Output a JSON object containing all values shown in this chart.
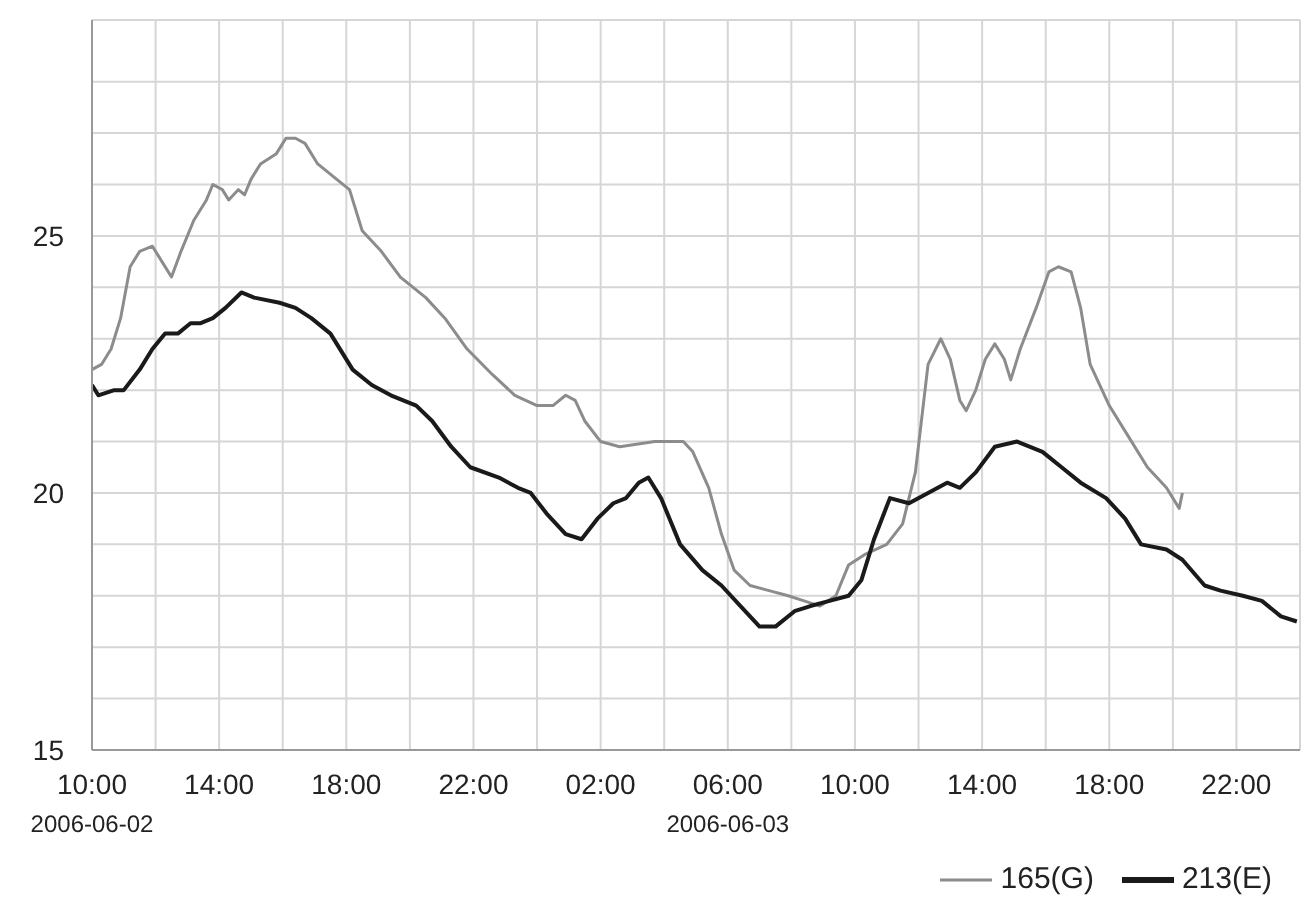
{
  "chart_data": {
    "type": "line",
    "xlim": [
      "2006-06-02T10:00",
      "2006-06-04T00:00"
    ],
    "ylim": [
      15,
      29.2
    ],
    "xticks": [
      {
        "value": "2006-06-02T10:00",
        "label": "10:00\n2006-06-02"
      },
      {
        "value": "2006-06-02T12:00",
        "label": null
      },
      {
        "value": "2006-06-02T14:00",
        "label": "14:00"
      },
      {
        "value": "2006-06-02T16:00",
        "label": null
      },
      {
        "value": "2006-06-02T18:00",
        "label": "18:00"
      },
      {
        "value": "2006-06-02T20:00",
        "label": null
      },
      {
        "value": "2006-06-02T22:00",
        "label": "22:00"
      },
      {
        "value": "2006-06-03T00:00",
        "label": null
      },
      {
        "value": "2006-06-03T02:00",
        "label": "02:00"
      },
      {
        "value": "2006-06-03T04:00",
        "label": null
      },
      {
        "value": "2006-06-03T06:00",
        "label": "06:00\n2006-06-03"
      },
      {
        "value": "2006-06-03T08:00",
        "label": null
      },
      {
        "value": "2006-06-03T10:00",
        "label": "10:00"
      },
      {
        "value": "2006-06-03T12:00",
        "label": null
      },
      {
        "value": "2006-06-03T14:00",
        "label": "14:00"
      },
      {
        "value": "2006-06-03T16:00",
        "label": null
      },
      {
        "value": "2006-06-03T18:00",
        "label": "18:00"
      },
      {
        "value": "2006-06-03T20:00",
        "label": null
      },
      {
        "value": "2006-06-03T22:00",
        "label": "22:00"
      }
    ],
    "yticks": [
      15,
      {
        "value": 16,
        "label": null
      },
      {
        "value": 17,
        "label": null
      },
      {
        "value": 18,
        "label": null
      },
      {
        "value": 19,
        "label": null
      },
      20,
      {
        "value": 21,
        "label": null
      },
      {
        "value": 22,
        "label": null
      },
      {
        "value": 23,
        "label": null
      },
      {
        "value": 24,
        "label": null
      },
      25,
      {
        "value": 26,
        "label": null
      },
      {
        "value": 27,
        "label": null
      },
      {
        "value": 28,
        "label": null
      }
    ],
    "grid": true,
    "legend": "bottom right",
    "marker": "none",
    "line_style": "solid",
    "series": [
      {
        "name": "165(G)",
        "color": "#8c8c8c",
        "x": [
          "2006-06-02T10:00",
          "2006-06-02T10:18",
          "2006-06-02T10:36",
          "2006-06-02T10:54",
          "2006-06-02T11:12",
          "2006-06-02T11:30",
          "2006-06-02T11:54",
          "2006-06-02T12:12",
          "2006-06-02T12:30",
          "2006-06-02T12:48",
          "2006-06-02T13:12",
          "2006-06-02T13:36",
          "2006-06-02T13:48",
          "2006-06-02T14:06",
          "2006-06-02T14:18",
          "2006-06-02T14:36",
          "2006-06-02T14:48",
          "2006-06-02T15:00",
          "2006-06-02T15:18",
          "2006-06-02T15:48",
          "2006-06-02T16:06",
          "2006-06-02T16:24",
          "2006-06-02T16:42",
          "2006-06-02T17:06",
          "2006-06-02T17:42",
          "2006-06-02T18:06",
          "2006-06-02T18:30",
          "2006-06-02T19:06",
          "2006-06-02T19:42",
          "2006-06-02T20:30",
          "2006-06-02T21:06",
          "2006-06-02T21:48",
          "2006-06-02T22:36",
          "2006-06-02T23:18",
          "2006-06-03T00:00",
          "2006-06-03T00:30",
          "2006-06-03T00:54",
          "2006-06-03T01:12",
          "2006-06-03T01:30",
          "2006-06-03T02:00",
          "2006-06-03T02:36",
          "2006-06-03T03:42",
          "2006-06-03T04:36",
          "2006-06-03T04:54",
          "2006-06-03T05:24",
          "2006-06-03T05:48",
          "2006-06-03T06:12",
          "2006-06-03T06:42",
          "2006-06-03T07:18",
          "2006-06-03T07:54",
          "2006-06-03T08:24",
          "2006-06-03T08:54",
          "2006-06-03T09:24",
          "2006-06-03T09:48",
          "2006-06-03T10:18",
          "2006-06-03T11:00",
          "2006-06-03T11:30",
          "2006-06-03T11:54",
          "2006-06-03T12:18",
          "2006-06-03T12:42",
          "2006-06-03T13:00",
          "2006-06-03T13:18",
          "2006-06-03T13:30",
          "2006-06-03T13:48",
          "2006-06-03T14:06",
          "2006-06-03T14:24",
          "2006-06-03T14:42",
          "2006-06-03T14:54",
          "2006-06-03T15:12",
          "2006-06-03T15:42",
          "2006-06-03T16:06",
          "2006-06-03T16:24",
          "2006-06-03T16:48",
          "2006-06-03T17:06",
          "2006-06-03T17:24",
          "2006-06-03T18:00",
          "2006-06-03T18:36",
          "2006-06-03T19:12",
          "2006-06-03T19:48",
          "2006-06-03T20:12",
          "2006-06-03T20:18"
        ],
        "values": [
          22.4,
          22.5,
          22.8,
          23.4,
          24.4,
          24.7,
          24.8,
          24.5,
          24.2,
          24.7,
          25.3,
          25.7,
          26,
          25.9,
          25.7,
          25.9,
          25.8,
          26.1,
          26.4,
          26.6,
          26.9,
          26.9,
          26.8,
          26.4,
          26.1,
          25.9,
          25.1,
          24.7,
          24.2,
          23.8,
          23.4,
          22.8,
          22.3,
          21.9,
          21.7,
          21.7,
          21.9,
          21.8,
          21.4,
          21,
          20.9,
          21,
          21,
          20.8,
          20.1,
          19.2,
          18.5,
          18.2,
          18.1,
          18,
          17.9,
          17.8,
          18,
          18.6,
          18.8,
          19,
          19.4,
          20.4,
          22.5,
          23,
          22.6,
          21.8,
          21.6,
          22,
          22.6,
          22.9,
          22.6,
          22.2,
          22.8,
          23.6,
          24.3,
          24.4,
          24.3,
          23.6,
          22.5,
          21.7,
          21.1,
          20.5,
          20.1,
          19.7,
          20
        ]
      },
      {
        "name": "213(E)",
        "color": "#1a1a1a",
        "x": [
          "2006-06-02T10:00",
          "2006-06-02T10:12",
          "2006-06-02T10:42",
          "2006-06-02T11:00",
          "2006-06-02T11:30",
          "2006-06-02T11:54",
          "2006-06-02T12:18",
          "2006-06-02T12:42",
          "2006-06-02T13:06",
          "2006-06-02T13:24",
          "2006-06-02T13:48",
          "2006-06-02T14:12",
          "2006-06-02T14:42",
          "2006-06-02T15:06",
          "2006-06-02T15:54",
          "2006-06-02T16:24",
          "2006-06-02T16:54",
          "2006-06-02T17:30",
          "2006-06-02T18:12",
          "2006-06-02T18:48",
          "2006-06-02T19:24",
          "2006-06-02T20:12",
          "2006-06-02T20:42",
          "2006-06-02T21:18",
          "2006-06-02T21:54",
          "2006-06-02T22:48",
          "2006-06-02T23:24",
          "2006-06-02T23:48",
          "2006-06-03T00:18",
          "2006-06-03T00:54",
          "2006-06-03T01:24",
          "2006-06-03T01:54",
          "2006-06-03T02:24",
          "2006-06-03T02:48",
          "2006-06-03T03:12",
          "2006-06-03T03:30",
          "2006-06-03T03:54",
          "2006-06-03T04:30",
          "2006-06-03T05:12",
          "2006-06-03T05:48",
          "2006-06-03T06:24",
          "2006-06-03T07:00",
          "2006-06-03T07:30",
          "2006-06-03T08:06",
          "2006-06-03T08:36",
          "2006-06-03T09:12",
          "2006-06-03T09:48",
          "2006-06-03T10:12",
          "2006-06-03T10:36",
          "2006-06-03T11:06",
          "2006-06-03T11:42",
          "2006-06-03T12:18",
          "2006-06-03T12:54",
          "2006-06-03T13:18",
          "2006-06-03T13:48",
          "2006-06-03T14:24",
          "2006-06-03T15:06",
          "2006-06-03T15:54",
          "2006-06-03T16:30",
          "2006-06-03T17:06",
          "2006-06-03T17:54",
          "2006-06-03T18:30",
          "2006-06-03T19:00",
          "2006-06-03T19:48",
          "2006-06-03T20:18",
          "2006-06-03T21:00",
          "2006-06-03T21:30",
          "2006-06-03T22:12",
          "2006-06-03T22:48",
          "2006-06-03T23:24",
          "2006-06-03T23:54"
        ],
        "values": [
          22.1,
          21.9,
          22,
          22,
          22.4,
          22.8,
          23.1,
          23.1,
          23.3,
          23.3,
          23.4,
          23.6,
          23.9,
          23.8,
          23.7,
          23.6,
          23.4,
          23.1,
          22.4,
          22.1,
          21.9,
          21.7,
          21.4,
          20.9,
          20.5,
          20.3,
          20.1,
          20,
          19.6,
          19.2,
          19.1,
          19.5,
          19.8,
          19.9,
          20.2,
          20.3,
          19.9,
          19,
          18.5,
          18.2,
          17.8,
          17.4,
          17.4,
          17.7,
          17.8,
          17.9,
          18,
          18.3,
          19.1,
          19.9,
          19.8,
          20,
          20.2,
          20.1,
          20.4,
          20.9,
          21,
          20.8,
          20.5,
          20.2,
          19.9,
          19.5,
          19,
          18.9,
          18.7,
          18.2,
          18.1,
          18,
          17.9,
          17.6,
          17.5
        ]
      }
    ]
  }
}
